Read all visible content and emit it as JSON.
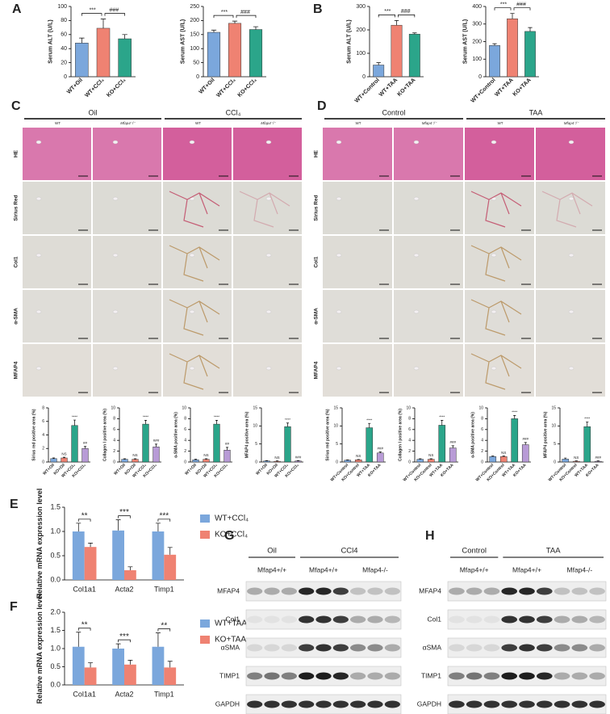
{
  "panel_labels": [
    "A",
    "B",
    "C",
    "D",
    "E",
    "F",
    "G",
    "H"
  ],
  "histology": {
    "C": {
      "groups": [
        "Oil",
        "CCl₄"
      ],
      "columns": [
        "WT",
        "Mfap4⁻/⁻",
        "WT",
        "Mfap4⁻/⁻"
      ],
      "rows": [
        "HE",
        "Sirius Red",
        "Col1",
        "α-SMA",
        "MFAP4"
      ]
    },
    "D": {
      "groups": [
        "Control",
        "TAA"
      ],
      "columns": [
        "WT",
        "Mfap4⁻/⁻",
        "WT",
        "Mfap4⁻/⁻"
      ],
      "rows": [
        "HE",
        "Sirius Red",
        "Col1",
        "α-SMA",
        "MFAP4"
      ]
    }
  },
  "blots": {
    "G": {
      "groups": [
        "Oil",
        "CCl4"
      ],
      "genotypes": [
        "Mfap4+/+",
        "Mfap4+/+",
        "Mfap4-/-"
      ],
      "proteins": [
        "MFAP4",
        "Col1",
        "αSMA",
        "TIMP1",
        "GAPDH"
      ]
    },
    "H": {
      "groups": [
        "Control",
        "TAA"
      ],
      "genotypes": [
        "Mfap4+/+",
        "Mfap4+/+",
        "Mfap4-/-"
      ],
      "proteins": [
        "MFAP4",
        "Col1",
        "αSMA",
        "TIMP1",
        "GAPDH"
      ]
    }
  },
  "chart_data": [
    {
      "type": "bar",
      "y_label": "Serum ALT (U/L)",
      "categories": [
        "WT+Oil",
        "WT+CCl₄",
        "KO+CCl₄"
      ],
      "values": [
        48,
        69,
        54
      ],
      "errors": [
        7,
        13,
        6
      ],
      "colors": [
        "#7ba7dc",
        "#ef8272",
        "#2ba58a"
      ],
      "ylim": [
        0,
        100
      ],
      "yticks": [
        0,
        20,
        40,
        60,
        80,
        100
      ],
      "annotations": [
        "***",
        "###"
      ]
    },
    {
      "type": "bar",
      "y_label": "Serum AST (U/L)",
      "categories": [
        "WT+Oil",
        "WT+CCl₄",
        "KO+CCl₄"
      ],
      "values": [
        158,
        190,
        168
      ],
      "errors": [
        8,
        8,
        10
      ],
      "colors": [
        "#7ba7dc",
        "#ef8272",
        "#2ba58a"
      ],
      "ylim": [
        0,
        250
      ],
      "yticks": [
        0,
        50,
        100,
        150,
        200,
        250
      ],
      "annotations": [
        "***",
        "###"
      ]
    },
    {
      "type": "bar",
      "y_label": "Serum ALT (U/L)",
      "categories": [
        "WT+Control",
        "WT+TAA",
        "KO+TAA"
      ],
      "values": [
        50,
        220,
        182
      ],
      "errors": [
        10,
        20,
        5
      ],
      "colors": [
        "#7ba7dc",
        "#ef8272",
        "#2ba58a"
      ],
      "ylim": [
        0,
        300
      ],
      "yticks": [
        0,
        100,
        200,
        300
      ],
      "annotations": [
        "***",
        "###"
      ]
    },
    {
      "type": "bar",
      "y_label": "Serum AST (U/L)",
      "categories": [
        "WT+Control",
        "WT+TAA",
        "KO+TAA"
      ],
      "values": [
        178,
        330,
        258
      ],
      "errors": [
        10,
        30,
        22
      ],
      "colors": [
        "#7ba7dc",
        "#ef8272",
        "#2ba58a"
      ],
      "ylim": [
        0,
        400
      ],
      "yticks": [
        0,
        100,
        200,
        300,
        400
      ],
      "annotations": [
        "***",
        "###"
      ]
    },
    {
      "type": "bar",
      "y_label": "Sirius red positive area (%)",
      "categories": [
        "WT+Oil",
        "KO+Oil",
        "WT+CCl₄",
        "KO+CCl₄"
      ],
      "values": [
        0.5,
        0.6,
        5.4,
        2.0
      ],
      "errors": [
        0.1,
        0.1,
        0.8,
        0.3
      ],
      "colors": [
        "#7ba7dc",
        "#ef8272",
        "#2ba58a",
        "#b89bd6"
      ],
      "ylim": [
        0,
        8
      ],
      "yticks": [
        0,
        2,
        4,
        6,
        8
      ],
      "value_annotations": [
        null,
        "NS",
        "****",
        "##"
      ]
    },
    {
      "type": "bar",
      "y_label": "Collagen I positive area (%)",
      "categories": [
        "WT+Oil",
        "KO+Oil",
        "WT+CCl₄",
        "KO+CCl₄"
      ],
      "values": [
        0.5,
        0.5,
        7.0,
        2.8
      ],
      "errors": [
        0.1,
        0.1,
        0.7,
        0.5
      ],
      "colors": [
        "#7ba7dc",
        "#ef8272",
        "#2ba58a",
        "#b89bd6"
      ],
      "ylim": [
        0,
        10
      ],
      "yticks": [
        0,
        2,
        4,
        6,
        8,
        10
      ],
      "value_annotations": [
        null,
        "NS",
        "****",
        "###"
      ]
    },
    {
      "type": "bar",
      "y_label": "α-SMA positive area (%)",
      "categories": [
        "WT+Oil",
        "KO+Oil",
        "WT+CCl₄",
        "KO+CCl₄"
      ],
      "values": [
        0.4,
        0.5,
        7.0,
        2.2
      ],
      "errors": [
        0.1,
        0.1,
        0.7,
        0.5
      ],
      "colors": [
        "#7ba7dc",
        "#ef8272",
        "#2ba58a",
        "#b89bd6"
      ],
      "ylim": [
        0,
        10
      ],
      "yticks": [
        0,
        2,
        4,
        6,
        8,
        10
      ],
      "value_annotations": [
        null,
        "NS",
        "****",
        "##"
      ]
    },
    {
      "type": "bar",
      "y_label": "MFAP4 positive area (%)",
      "categories": [
        "WT+Oil",
        "KO+Oil",
        "WT+CCl₄",
        "KO+CCl₄"
      ],
      "values": [
        0.3,
        0.2,
        9.8,
        0.3
      ],
      "errors": [
        0.1,
        0.1,
        1.0,
        0.1
      ],
      "colors": [
        "#7ba7dc",
        "#ef8272",
        "#2ba58a",
        "#b89bd6"
      ],
      "ylim": [
        0,
        15
      ],
      "yticks": [
        0,
        5,
        10,
        15
      ],
      "value_annotations": [
        null,
        "NS",
        "****",
        "###"
      ]
    },
    {
      "type": "bar",
      "y_label": "Sirius red positive area (%)",
      "categories": [
        "WT+Control",
        "KO+Control",
        "WT+TAA",
        "KO+TAA"
      ],
      "values": [
        0.5,
        0.6,
        9.5,
        2.5
      ],
      "errors": [
        0.1,
        0.1,
        1.2,
        0.3
      ],
      "colors": [
        "#7ba7dc",
        "#ef8272",
        "#2ba58a",
        "#b89bd6"
      ],
      "ylim": [
        0,
        15
      ],
      "yticks": [
        0,
        5,
        10,
        15
      ],
      "value_annotations": [
        null,
        "NS",
        "****",
        "###"
      ]
    },
    {
      "type": "bar",
      "y_label": "Collagen I positive area (%)",
      "categories": [
        "WT+Control",
        "KO+Control",
        "WT+TAA",
        "KO+TAA"
      ],
      "values": [
        0.5,
        0.5,
        6.8,
        2.6
      ],
      "errors": [
        0.1,
        0.1,
        0.9,
        0.4
      ],
      "colors": [
        "#7ba7dc",
        "#ef8272",
        "#2ba58a",
        "#b89bd6"
      ],
      "ylim": [
        0,
        10
      ],
      "yticks": [
        0,
        2,
        4,
        6,
        8,
        10
      ],
      "value_annotations": [
        null,
        "NS",
        "****",
        "###"
      ]
    },
    {
      "type": "bar",
      "y_label": "α-SMA positive area (%)",
      "categories": [
        "WT+Control",
        "KO+Control",
        "WT+TAA",
        "KO+TAA"
      ],
      "values": [
        1.0,
        1.0,
        8.0,
        3.2
      ],
      "errors": [
        0.1,
        0.1,
        0.6,
        0.4
      ],
      "colors": [
        "#7ba7dc",
        "#ef8272",
        "#2ba58a",
        "#b89bd6"
      ],
      "ylim": [
        0,
        10
      ],
      "yticks": [
        0,
        2,
        4,
        6,
        8,
        10
      ],
      "value_annotations": [
        null,
        "NS",
        "****",
        "###"
      ]
    },
    {
      "type": "bar",
      "y_label": "MFAP4 positive area (%)",
      "categories": [
        "WT+Control",
        "KO+Control",
        "WT+TAA",
        "KO+TAA"
      ],
      "values": [
        0.8,
        0.2,
        9.8,
        0.2
      ],
      "errors": [
        0.3,
        0.1,
        1.3,
        0.1
      ],
      "colors": [
        "#7ba7dc",
        "#ef8272",
        "#2ba58a",
        "#b89bd6"
      ],
      "ylim": [
        0,
        15
      ],
      "yticks": [
        0,
        5,
        10,
        15
      ],
      "value_annotations": [
        null,
        "NS",
        "****",
        "###"
      ]
    },
    {
      "type": "bar",
      "y_label": "Relative mRNA expression level",
      "categories": [
        "Col1a1",
        "Acta2",
        "Timp1"
      ],
      "series": [
        {
          "name": "WT+CCl₄",
          "color": "#7ba7dc",
          "values": [
            1.0,
            1.02,
            1.0
          ],
          "errors": [
            0.17,
            0.22,
            0.17
          ]
        },
        {
          "name": "KO+CCl₄",
          "color": "#ef8272",
          "values": [
            0.68,
            0.2,
            0.52
          ],
          "errors": [
            0.08,
            0.07,
            0.15
          ]
        }
      ],
      "ylim": [
        0,
        1.5
      ],
      "yticks": [
        {
          "value": 0,
          "label": "0.0"
        },
        0.5,
        {
          "value": 1,
          "label": "1.0"
        },
        1.5
      ],
      "annotations": [
        "**",
        "***",
        "***"
      ]
    },
    {
      "type": "bar",
      "y_label": "Relative mRNA expression level",
      "categories": [
        "Col1a1",
        "Acta2",
        "Timp1"
      ],
      "series": [
        {
          "name": "WT+TAA",
          "color": "#7ba7dc",
          "values": [
            1.05,
            1.0,
            1.05
          ],
          "errors": [
            0.4,
            0.13,
            0.38
          ]
        },
        {
          "name": "KO+TAA",
          "color": "#ef8272",
          "values": [
            0.48,
            0.56,
            0.48
          ],
          "errors": [
            0.13,
            0.12,
            0.17
          ]
        }
      ],
      "ylim": [
        0,
        2
      ],
      "yticks": [
        {
          "value": 0,
          "label": "0.0"
        },
        0.5,
        {
          "value": 1,
          "label": "1.0"
        },
        1.5,
        {
          "value": 2,
          "label": "2.0"
        }
      ],
      "annotations": [
        "**",
        "***",
        "**"
      ]
    }
  ]
}
